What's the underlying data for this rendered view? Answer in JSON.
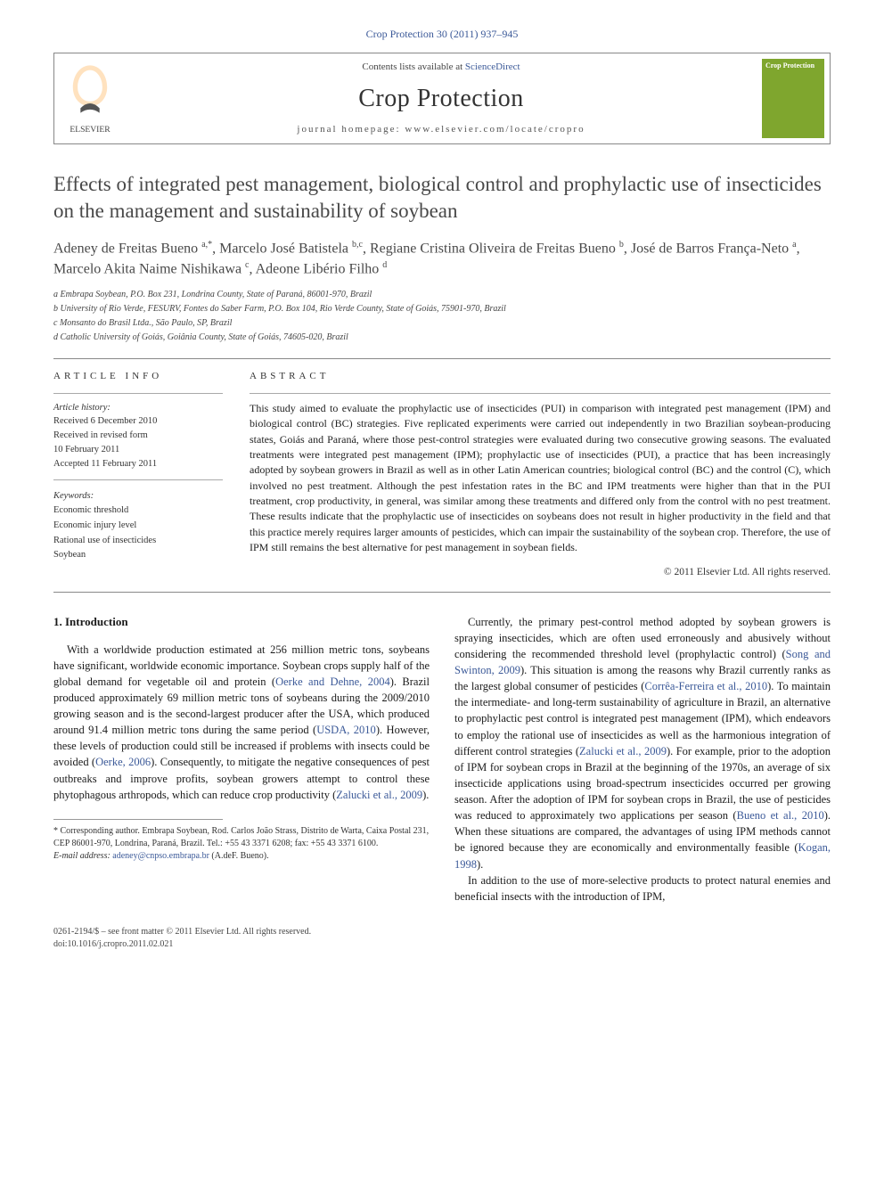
{
  "citation": "Crop Protection 30 (2011) 937–945",
  "header": {
    "contents_prefix": "Contents lists available at ",
    "contents_link": "ScienceDirect",
    "journal": "Crop Protection",
    "homepage_prefix": "journal homepage: ",
    "homepage_url": "www.elsevier.com/locate/cropro",
    "publisher": "ELSEVIER",
    "cover_label": "Crop Protection"
  },
  "title": "Effects of integrated pest management, biological control and prophylactic use of insecticides on the management and sustainability of soybean",
  "authors_html": "Adeney de Freitas Bueno <sup>a,*</sup>, Marcelo José Batistela <sup>b,c</sup>, Regiane Cristina Oliveira de Freitas Bueno <sup>b</sup>, José de Barros França-Neto <sup>a</sup>, Marcelo Akita Naime Nishikawa <sup>c</sup>, Adeone Libério Filho <sup>d</sup>",
  "affiliations": [
    "a Embrapa Soybean, P.O. Box 231, Londrina County, State of Paraná, 86001-970, Brazil",
    "b University of Rio Verde, FESURV, Fontes do Saber Farm, P.O. Box 104, Rio Verde County, State of Goiás, 75901-970, Brazil",
    "c Monsanto do Brasil Ltda., São Paulo, SP, Brazil",
    "d Catholic University of Goiás, Goiânia County, State of Goiás, 74605-020, Brazil"
  ],
  "article_info": {
    "label": "ARTICLE INFO",
    "history_label": "Article history:",
    "history": [
      "Received 6 December 2010",
      "Received in revised form",
      "10 February 2011",
      "Accepted 11 February 2011"
    ],
    "keywords_label": "Keywords:",
    "keywords": [
      "Economic threshold",
      "Economic injury level",
      "Rational use of insecticides",
      "Soybean"
    ]
  },
  "abstract": {
    "label": "ABSTRACT",
    "text": "This study aimed to evaluate the prophylactic use of insecticides (PUI) in comparison with integrated pest management (IPM) and biological control (BC) strategies. Five replicated experiments were carried out independently in two Brazilian soybean-producing states, Goiás and Paraná, where those pest-control strategies were evaluated during two consecutive growing seasons. The evaluated treatments were integrated pest management (IPM); prophylactic use of insecticides (PUI), a practice that has been increasingly adopted by soybean growers in Brazil as well as in other Latin American countries; biological control (BC) and the control (C), which involved no pest treatment. Although the pest infestation rates in the BC and IPM treatments were higher than that in the PUI treatment, crop productivity, in general, was similar among these treatments and differed only from the control with no pest treatment. These results indicate that the prophylactic use of insecticides on soybeans does not result in higher productivity in the field and that this practice merely requires larger amounts of pesticides, which can impair the sustainability of the soybean crop. Therefore, the use of IPM still remains the best alternative for pest management in soybean fields.",
    "copyright": "© 2011 Elsevier Ltd. All rights reserved."
  },
  "body": {
    "section_heading": "1. Introduction",
    "col1_p1": "With a worldwide production estimated at 256 million metric tons, soybeans have significant, worldwide economic importance. Soybean crops supply half of the global demand for vegetable oil and protein (",
    "ref1": "Oerke and Dehne, 2004",
    "col1_p1b": "). Brazil produced approximately 69 million metric tons of soybeans during the 2009/2010 growing season and is the second-largest producer after the USA, which produced around 91.4 million metric tons during the same period (",
    "ref2": "USDA, 2010",
    "col1_p1c": "). However, these levels of production could still be increased if problems with insects could be avoided (",
    "ref3": "Oerke, 2006",
    "col1_p1d": "). Consequently, to mitigate the negative consequences of pest outbreaks and improve profits, soybean growers attempt to control these phytophagous arthropods, which can reduce crop productivity (",
    "ref4": "Zalucki et al., 2009",
    "col1_p1e": ").",
    "col2_p1": "Currently, the primary pest-control method adopted by soybean growers is spraying insecticides, which are often used erroneously and abusively without considering the recommended threshold level (prophylactic control) (",
    "ref5": "Song and Swinton, 2009",
    "col2_p1b": "). This situation is among the reasons why Brazil currently ranks as the largest global consumer of pesticides (",
    "ref6": "Corrêa-Ferreira et al., 2010",
    "col2_p1c": "). To maintain the intermediate- and long-term sustainability of agriculture in Brazil, an alternative to prophylactic pest control is integrated pest management (IPM), which endeavors to employ the rational use of insecticides as well as the harmonious integration of different control strategies (",
    "ref7": "Zalucki et al., 2009",
    "col2_p1d": "). For example, prior to the adoption of IPM for soybean crops in Brazil at the beginning of the 1970s, an average of six insecticide applications using broad-spectrum insecticides occurred per growing season. After the adoption of IPM for soybean crops in Brazil, the use of pesticides was reduced to approximately two applications per season (",
    "ref8": "Bueno et al., 2010",
    "col2_p1e": "). When these situations are compared, the advantages of using IPM methods cannot be ignored because they are economically and environmentally feasible (",
    "ref9": "Kogan, 1998",
    "col2_p1f": ").",
    "col2_p2": "In addition to the use of more-selective products to protect natural enemies and beneficial insects with the introduction of IPM,"
  },
  "footnote": {
    "corr": "* Corresponding author. Embrapa Soybean, Rod. Carlos João Strass, Distrito de Warta, Caixa Postal 231, CEP 86001-970, Londrina, Paraná, Brazil. Tel.: +55 43 3371 6208; fax: +55 43 3371 6100.",
    "email_label": "E-mail address: ",
    "email": "adeney@cnpso.embrapa.br",
    "email_suffix": " (A.deF. Bueno)."
  },
  "bottom": {
    "line1": "0261-2194/$ – see front matter © 2011 Elsevier Ltd. All rights reserved.",
    "line2": "doi:10.1016/j.cropro.2011.02.021"
  },
  "colors": {
    "link": "#3b5998",
    "rule": "#888888",
    "cover_bg": "#7fa62e",
    "elsevier_orange": "#ff8a00"
  }
}
